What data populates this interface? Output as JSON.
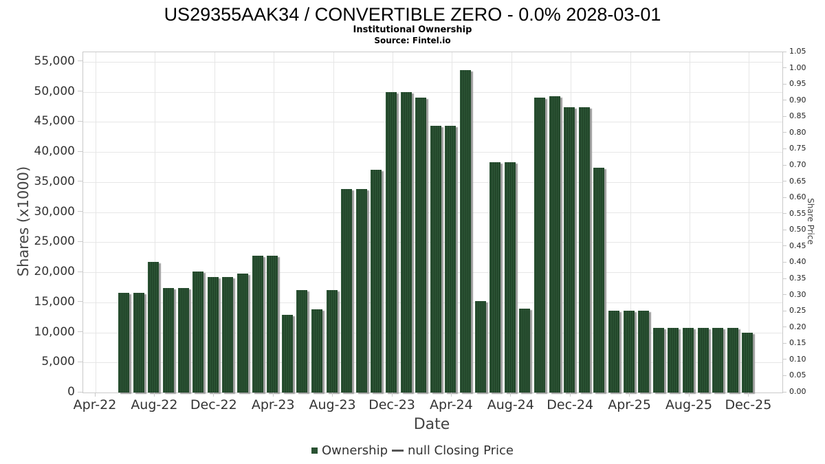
{
  "header": {
    "title": "US29355AAK34 / CONVERTIBLE ZERO - 0.0% 2028-03-01",
    "subtitle": "Institutional Ownership",
    "source": "Source: Fintel.io"
  },
  "legend": {
    "items": [
      {
        "label": "Ownership",
        "marker": "square",
        "color": "#2a5233"
      },
      {
        "label": "null Closing Price",
        "marker": "line",
        "color": "#555555"
      }
    ]
  },
  "colors": {
    "bar": "#2a5233",
    "bar_stripe": "#1f4026",
    "bar_shadow": "#9b9b9b",
    "grid": "#e6e6e6",
    "axis_line": "#c9c9c9",
    "tick_text": "#333333",
    "axis_title_text": "#444444"
  },
  "chart_data": {
    "type": "bar",
    "title": "US29355AAK34 / CONVERTIBLE ZERO - 0.0% 2028-03-01",
    "subtitle": "Institutional Ownership",
    "source": "Source: Fintel.io",
    "xlabel": "Date",
    "ylabel_left": "Shares (x1000)",
    "ylabel_right": "Share Price",
    "legend_position": "bottom",
    "grid": true,
    "y_left_range": [
      0,
      56600
    ],
    "y_right_range": [
      0,
      1.05
    ],
    "y_left_tick_values": [
      0,
      5000,
      10000,
      15000,
      20000,
      25000,
      30000,
      35000,
      40000,
      45000,
      50000,
      55000
    ],
    "y_left_tick_labels": [
      "0",
      "5,000",
      "10,000",
      "15,000",
      "20,000",
      "25,000",
      "30,000",
      "35,000",
      "40,000",
      "45,000",
      "50,000",
      "55,000"
    ],
    "y_right_tick_labels": [
      "0.00",
      "0.05",
      "0.10",
      "0.15",
      "0.20",
      "0.25",
      "0.30",
      "0.35",
      "0.40",
      "0.45",
      "0.50",
      "0.55",
      "0.60",
      "0.65",
      "0.70",
      "0.75",
      "0.80",
      "0.85",
      "0.90",
      "0.95",
      "1.00",
      "1.05"
    ],
    "x_tick_labels": [
      "Apr-22",
      "Aug-22",
      "Dec-22",
      "Apr-23",
      "Aug-23",
      "Dec-23",
      "Apr-24",
      "Aug-24",
      "Dec-24",
      "Apr-25",
      "Aug-25",
      "Dec-25"
    ],
    "categories": [
      "Jun-22",
      "Jul-22",
      "Aug-22",
      "Sep-22",
      "Oct-22",
      "Nov-22",
      "Dec-22",
      "Jan-23",
      "Feb-23",
      "Mar-23",
      "Apr-23",
      "May-23",
      "Jun-23",
      "Jul-23",
      "Aug-23",
      "Sep-23",
      "Oct-23",
      "Nov-23",
      "Dec-23",
      "Jan-24",
      "Feb-24",
      "Mar-24",
      "Apr-24",
      "May-24",
      "Jun-24",
      "Jul-24",
      "Aug-24",
      "Sep-24",
      "Oct-24",
      "Nov-24",
      "Dec-24",
      "Jan-25",
      "Feb-25",
      "Mar-25",
      "Apr-25",
      "May-25",
      "Jun-25",
      "Jul-25",
      "Aug-25",
      "Sep-25",
      "Oct-25",
      "Nov-25",
      "Dec-25"
    ],
    "series": [
      {
        "name": "Ownership",
        "type": "column",
        "values": [
          16600,
          16600,
          21700,
          17400,
          17400,
          20100,
          19200,
          19200,
          19800,
          22700,
          22700,
          12900,
          17000,
          13800,
          17000,
          33900,
          33900,
          37100,
          50000,
          50000,
          49000,
          44400,
          44400,
          53600,
          15200,
          38300,
          38300,
          14000,
          49000,
          49300,
          47400,
          47400,
          37400,
          13600,
          13600,
          13600,
          10700,
          10700,
          10700,
          10700,
          10700,
          10700,
          10000
        ]
      },
      {
        "name": "null Closing Price",
        "type": "line",
        "values": []
      }
    ]
  }
}
